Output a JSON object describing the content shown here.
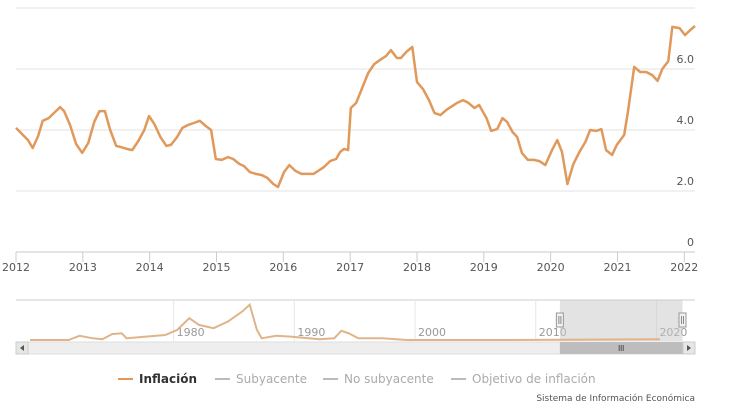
{
  "chart_data": {
    "type": "line",
    "title": "",
    "xlabel": "",
    "ylabel": "",
    "xlim": [
      2012,
      2022.16
    ],
    "ylim": [
      0,
      8
    ],
    "yticks": [
      {
        "v": 0,
        "label": "0"
      },
      {
        "v": 2,
        "label": "2.0"
      },
      {
        "v": 4,
        "label": "4.0"
      },
      {
        "v": 6,
        "label": "6.0"
      },
      {
        "v": 8,
        "label": ""
      }
    ],
    "xticks": [
      "2012",
      "2013",
      "2014",
      "2015",
      "2016",
      "2017",
      "2018",
      "2019",
      "2020",
      "2021",
      "2022"
    ],
    "grid": true,
    "series": [
      {
        "name": "Inflación",
        "color": "#e0995a",
        "points": [
          [
            2012.0,
            4.07
          ],
          [
            2012.09,
            3.87
          ],
          [
            2012.18,
            3.67
          ],
          [
            2012.25,
            3.41
          ],
          [
            2012.33,
            3.8
          ],
          [
            2012.4,
            4.3
          ],
          [
            2012.49,
            4.39
          ],
          [
            2012.57,
            4.56
          ],
          [
            2012.66,
            4.75
          ],
          [
            2012.72,
            4.62
          ],
          [
            2012.81,
            4.16
          ],
          [
            2012.9,
            3.54
          ],
          [
            2012.99,
            3.25
          ],
          [
            2013.08,
            3.57
          ],
          [
            2013.17,
            4.26
          ],
          [
            2013.25,
            4.62
          ],
          [
            2013.33,
            4.62
          ],
          [
            2013.41,
            4.0
          ],
          [
            2013.5,
            3.48
          ],
          [
            2013.57,
            3.44
          ],
          [
            2013.66,
            3.38
          ],
          [
            2013.74,
            3.34
          ],
          [
            2013.83,
            3.64
          ],
          [
            2013.92,
            4.0
          ],
          [
            2013.99,
            4.46
          ],
          [
            2014.07,
            4.2
          ],
          [
            2014.16,
            3.77
          ],
          [
            2014.25,
            3.48
          ],
          [
            2014.32,
            3.51
          ],
          [
            2014.41,
            3.77
          ],
          [
            2014.49,
            4.07
          ],
          [
            2014.57,
            4.16
          ],
          [
            2014.66,
            4.23
          ],
          [
            2014.75,
            4.3
          ],
          [
            2014.84,
            4.13
          ],
          [
            2014.92,
            4.0
          ],
          [
            2014.99,
            3.05
          ],
          [
            2015.08,
            3.02
          ],
          [
            2015.17,
            3.11
          ],
          [
            2015.25,
            3.05
          ],
          [
            2015.34,
            2.89
          ],
          [
            2015.41,
            2.82
          ],
          [
            2015.5,
            2.62
          ],
          [
            2015.59,
            2.56
          ],
          [
            2015.68,
            2.52
          ],
          [
            2015.76,
            2.43
          ],
          [
            2015.85,
            2.23
          ],
          [
            2015.92,
            2.13
          ],
          [
            2016.01,
            2.62
          ],
          [
            2016.09,
            2.85
          ],
          [
            2016.18,
            2.66
          ],
          [
            2016.27,
            2.56
          ],
          [
            2016.36,
            2.56
          ],
          [
            2016.45,
            2.56
          ],
          [
            2016.52,
            2.66
          ],
          [
            2016.61,
            2.79
          ],
          [
            2016.7,
            2.98
          ],
          [
            2016.79,
            3.05
          ],
          [
            2016.85,
            3.28
          ],
          [
            2016.91,
            3.38
          ],
          [
            2016.97,
            3.34
          ],
          [
            2017.01,
            4.72
          ],
          [
            2017.09,
            4.89
          ],
          [
            2017.18,
            5.38
          ],
          [
            2017.27,
            5.87
          ],
          [
            2017.36,
            6.16
          ],
          [
            2017.45,
            6.3
          ],
          [
            2017.54,
            6.43
          ],
          [
            2017.61,
            6.62
          ],
          [
            2017.7,
            6.36
          ],
          [
            2017.76,
            6.36
          ],
          [
            2017.84,
            6.56
          ],
          [
            2017.93,
            6.72
          ],
          [
            2018.0,
            5.57
          ],
          [
            2018.09,
            5.34
          ],
          [
            2018.18,
            4.98
          ],
          [
            2018.26,
            4.56
          ],
          [
            2018.35,
            4.49
          ],
          [
            2018.44,
            4.66
          ],
          [
            2018.53,
            4.79
          ],
          [
            2018.6,
            4.89
          ],
          [
            2018.69,
            4.98
          ],
          [
            2018.77,
            4.89
          ],
          [
            2018.86,
            4.72
          ],
          [
            2018.93,
            4.82
          ],
          [
            2019.04,
            4.39
          ],
          [
            2019.11,
            3.97
          ],
          [
            2019.2,
            4.03
          ],
          [
            2019.28,
            4.39
          ],
          [
            2019.35,
            4.26
          ],
          [
            2019.43,
            3.93
          ],
          [
            2019.5,
            3.77
          ],
          [
            2019.57,
            3.25
          ],
          [
            2019.66,
            3.02
          ],
          [
            2019.75,
            3.02
          ],
          [
            2019.83,
            2.98
          ],
          [
            2019.92,
            2.85
          ],
          [
            2020.02,
            3.34
          ],
          [
            2020.1,
            3.67
          ],
          [
            2020.17,
            3.28
          ],
          [
            2020.25,
            2.23
          ],
          [
            2020.34,
            2.89
          ],
          [
            2020.43,
            3.28
          ],
          [
            2020.52,
            3.61
          ],
          [
            2020.59,
            4.0
          ],
          [
            2020.68,
            3.97
          ],
          [
            2020.76,
            4.03
          ],
          [
            2020.83,
            3.34
          ],
          [
            2020.92,
            3.18
          ],
          [
            2020.99,
            3.51
          ],
          [
            2021.1,
            3.84
          ],
          [
            2021.16,
            4.66
          ],
          [
            2021.25,
            6.07
          ],
          [
            2021.34,
            5.9
          ],
          [
            2021.43,
            5.9
          ],
          [
            2021.52,
            5.8
          ],
          [
            2021.6,
            5.61
          ],
          [
            2021.67,
            6.0
          ],
          [
            2021.76,
            6.26
          ],
          [
            2021.82,
            7.38
          ],
          [
            2021.93,
            7.34
          ],
          [
            2022.01,
            7.11
          ],
          [
            2022.09,
            7.28
          ],
          [
            2022.16,
            7.41
          ]
        ]
      }
    ],
    "navigator": {
      "xlim": [
        1968.1,
        2022.2
      ],
      "labels": [
        "1980",
        "1990",
        "2000",
        "2010",
        "2020"
      ],
      "selected_range": [
        2012,
        2022.16
      ],
      "points": [
        [
          1968.1,
          0
        ],
        [
          1971.3,
          0
        ],
        [
          1972.2,
          5
        ],
        [
          1973.3,
          2
        ],
        [
          1974.1,
          1
        ],
        [
          1974.9,
          7
        ],
        [
          1975.7,
          8
        ],
        [
          1976.1,
          2
        ],
        [
          1977.7,
          4
        ],
        [
          1979.3,
          6
        ],
        [
          1980.3,
          12
        ],
        [
          1981.3,
          26
        ],
        [
          1982.1,
          18
        ],
        [
          1983.3,
          14
        ],
        [
          1984.5,
          22
        ],
        [
          1985.7,
          34
        ],
        [
          1986.3,
          42
        ],
        [
          1986.9,
          12
        ],
        [
          1987.3,
          2
        ],
        [
          1988.5,
          5
        ],
        [
          1989.7,
          4
        ],
        [
          1992.1,
          1
        ],
        [
          1993.3,
          2
        ],
        [
          1993.9,
          11
        ],
        [
          1994.5,
          8
        ],
        [
          1995.3,
          2
        ],
        [
          1997.3,
          2
        ],
        [
          1999.3,
          0
        ],
        [
          2008.1,
          0
        ],
        [
          2020.3,
          1
        ]
      ]
    },
    "legend": {
      "placement": "bottom",
      "items": [
        {
          "label": "Inflación",
          "color": "#e0995a",
          "active": true
        },
        {
          "label": "Subyacente",
          "color": "#bbbbbb",
          "active": false
        },
        {
          "label": "No subyacente",
          "color": "#bbbbbb",
          "active": false
        },
        {
          "label": "Objetivo de inflación",
          "color": "#bbbbbb",
          "active": false
        }
      ]
    }
  },
  "credit": "Sistema de Información Económica"
}
